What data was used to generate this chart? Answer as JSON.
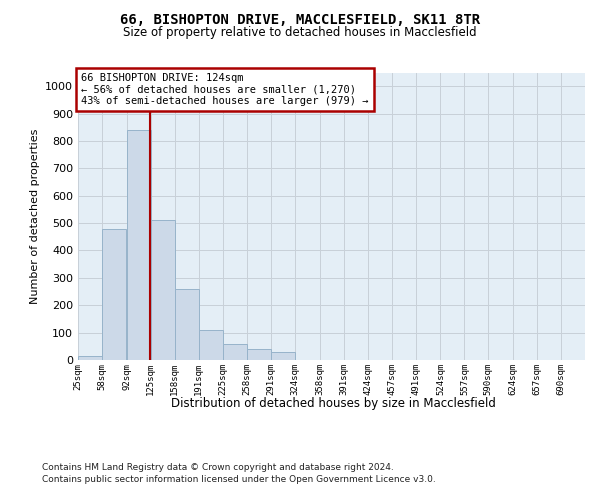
{
  "title_line1": "66, BISHOPTON DRIVE, MACCLESFIELD, SK11 8TR",
  "title_line2": "Size of property relative to detached houses in Macclesfield",
  "xlabel": "Distribution of detached houses by size in Macclesfield",
  "ylabel": "Number of detached properties",
  "footnote1": "Contains HM Land Registry data © Crown copyright and database right 2024.",
  "footnote2": "Contains public sector information licensed under the Open Government Licence v3.0.",
  "annotation_title": "66 BISHOPTON DRIVE: 124sqm",
  "annotation_line2": "← 56% of detached houses are smaller (1,270)",
  "annotation_line3": "43% of semi-detached houses are larger (979) →",
  "property_size": 124,
  "bin_size": 33,
  "bar_left_edges": [
    25,
    58,
    92,
    125,
    158,
    191,
    225,
    258,
    291,
    324,
    358,
    391,
    424,
    457,
    491,
    524,
    557,
    590,
    624,
    657
  ],
  "bar_heights": [
    15,
    480,
    840,
    510,
    260,
    110,
    60,
    40,
    30,
    0,
    0,
    0,
    0,
    0,
    0,
    0,
    0,
    0,
    0,
    0
  ],
  "bar_color": "#ccd9e8",
  "bar_edge_color": "#97b3ca",
  "vline_color": "#aa0000",
  "ylim_max": 1050,
  "xlim_min": 25,
  "xlim_max": 723,
  "grid_color": "#c8d0d8",
  "bg_color": "#e4eef6",
  "ann_box_color": "#ffffff",
  "ann_box_edge": "#aa0000",
  "tick_labels": [
    "25sqm",
    "58sqm",
    "92sqm",
    "125sqm",
    "158sqm",
    "191sqm",
    "225sqm",
    "258sqm",
    "291sqm",
    "324sqm",
    "358sqm",
    "391sqm",
    "424sqm",
    "457sqm",
    "491sqm",
    "524sqm",
    "557sqm",
    "590sqm",
    "624sqm",
    "657sqm",
    "690sqm"
  ],
  "yticks": [
    0,
    100,
    200,
    300,
    400,
    500,
    600,
    700,
    800,
    900,
    1000
  ]
}
